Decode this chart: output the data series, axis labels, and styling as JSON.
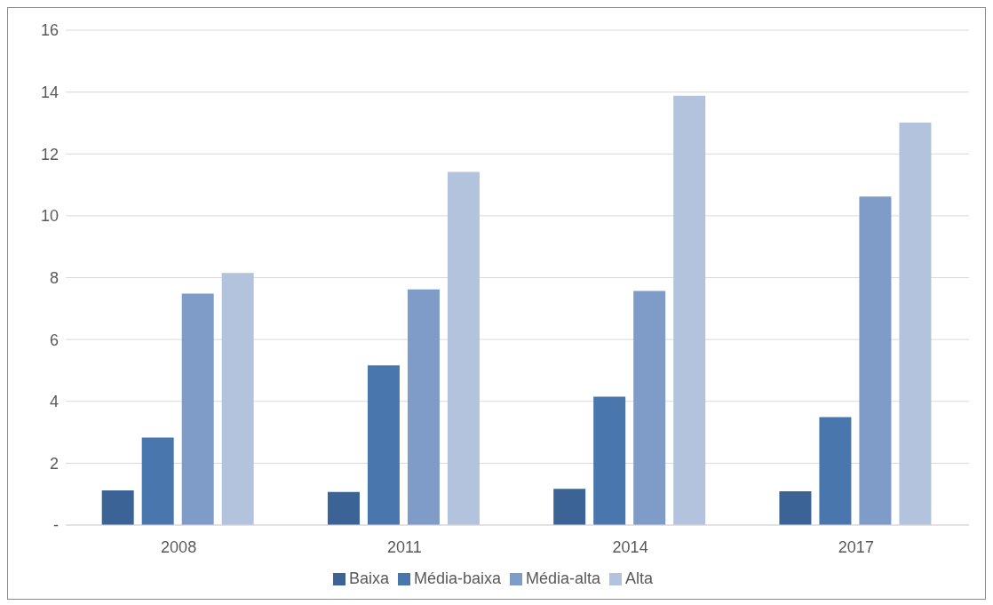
{
  "chart_data": {
    "type": "bar",
    "categories": [
      "2008",
      "2011",
      "2014",
      "2017"
    ],
    "series": [
      {
        "name": "Baixa",
        "color": "#3b6395",
        "values": [
          1.12,
          1.07,
          1.17,
          1.09
        ]
      },
      {
        "name": "Média-baixa",
        "color": "#4a76ae",
        "values": [
          2.83,
          5.16,
          4.15,
          3.49
        ]
      },
      {
        "name": "Média-alta",
        "color": "#7f9bc7",
        "values": [
          7.48,
          7.62,
          7.57,
          10.62
        ]
      },
      {
        "name": "Alta",
        "color": "#b4c3dd",
        "values": [
          8.15,
          11.42,
          13.88,
          13.01
        ]
      }
    ],
    "ylim": [
      0,
      16
    ],
    "yticks": [
      {
        "value": 0,
        "label": "-"
      },
      2,
      4,
      6,
      8,
      10,
      12,
      14,
      16
    ],
    "grid": "y",
    "legend": "bottom"
  }
}
